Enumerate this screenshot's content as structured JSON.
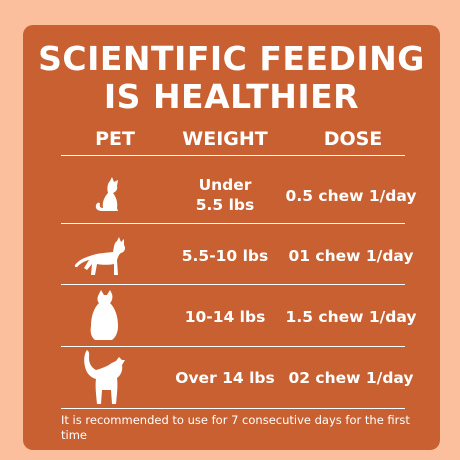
{
  "title": {
    "line1": "SCIENTIFIC FEEDING",
    "line2": "IS HEALTHIER"
  },
  "table": {
    "headers": {
      "pet": "PET",
      "weight": "WEIGHT",
      "dose": "DOSE"
    },
    "rows": [
      {
        "pet_icon": "cat-sitting-small-icon",
        "weight_line1": "Under",
        "weight_line2": "5.5 lbs",
        "dose": "0.5 chew 1/day"
      },
      {
        "pet_icon": "cat-walking-icon",
        "weight": "5.5-10 lbs",
        "dose": "01 chew 1/day"
      },
      {
        "pet_icon": "cat-sitting-back-icon",
        "weight": "10-14 lbs",
        "dose": "1.5 chew 1/day"
      },
      {
        "pet_icon": "cat-standing-large-icon",
        "weight": "Over 14 lbs",
        "dose": "02 chew 1/day"
      }
    ]
  },
  "footnote": "It is recommended to use for 7 consecutive days for the first time",
  "colors": {
    "background": "#fbbf9d",
    "card": "#c96031",
    "text": "#ffffff"
  }
}
